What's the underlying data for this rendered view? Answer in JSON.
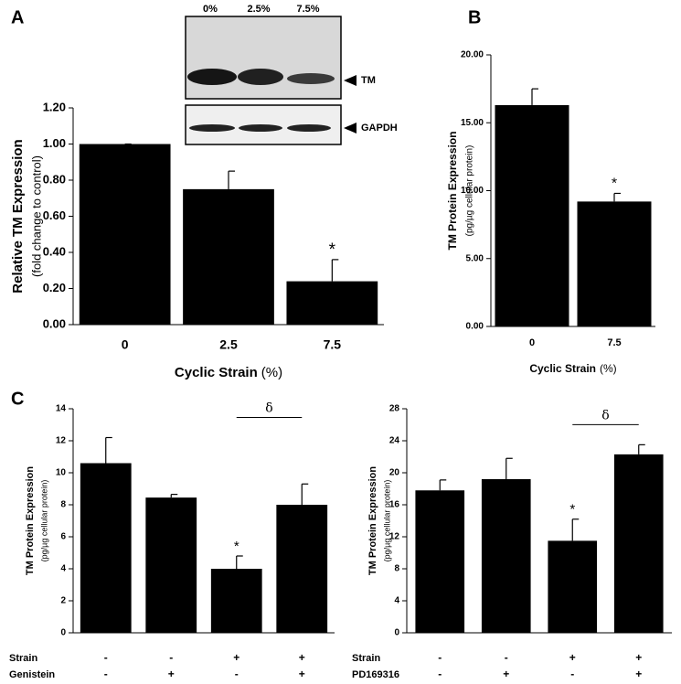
{
  "chart_data": [
    {
      "type": "bar",
      "panel": "A",
      "ylabel": "Relative TM Expression",
      "ylabel_sub": "(fold change to control)",
      "xlabel": "Cyclic Strain",
      "xlabel_unit": "(%)",
      "categories": [
        "0",
        "2.5",
        "7.5"
      ],
      "values": [
        1.0,
        0.75,
        0.24
      ],
      "errors": [
        0,
        0.1,
        0.12
      ],
      "value_annotations": [
        null,
        null,
        "*"
      ],
      "color": "#000000",
      "ylim": [
        0,
        1.2
      ],
      "yticks": [
        {
          "value": 0,
          "label": "0.00"
        },
        {
          "value": 0.2,
          "label": "0.20"
        },
        {
          "value": 0.4,
          "label": "0.40"
        },
        {
          "value": 0.6,
          "label": "0.60"
        },
        {
          "value": 0.8,
          "label": "0.80"
        },
        {
          "value": 1.0,
          "label": "1.00"
        },
        {
          "value": 1.2,
          "label": "1.20"
        }
      ],
      "inset": {
        "lanes": [
          "0%",
          "2.5%",
          "7.5%"
        ],
        "bands": [
          "TM",
          "GAPDH"
        ]
      }
    },
    {
      "type": "bar",
      "panel": "B",
      "ylabel": "TM Protein Expression",
      "ylabel_sub": "(pg/µg cellular protein)",
      "xlabel": "Cyclic Strain",
      "xlabel_unit": "(%)",
      "categories": [
        "0",
        "7.5"
      ],
      "values": [
        16.3,
        9.2
      ],
      "errors": [
        1.2,
        0.6
      ],
      "value_annotations": [
        null,
        "*"
      ],
      "color": "#000000",
      "ylim": [
        0,
        20
      ],
      "yticks": [
        {
          "value": 0,
          "label": "0.00"
        },
        {
          "value": 5,
          "label": "5.00"
        },
        {
          "value": 10,
          "label": "10.00"
        },
        {
          "value": 15,
          "label": "15.00"
        },
        {
          "value": 20,
          "label": "20.00"
        }
      ]
    },
    {
      "type": "bar",
      "panel": "C",
      "ylabel": "TM Protein Expression",
      "ylabel_sub": "(pg/µg cellular protein)",
      "treatments": [
        {
          "name": "Strain",
          "levels": [
            "-",
            "-",
            "+",
            "+"
          ]
        },
        {
          "name": "Genistein",
          "levels": [
            "-",
            "+",
            "-",
            "+"
          ]
        }
      ],
      "values": [
        10.6,
        8.45,
        4.0,
        8.0
      ],
      "errors": [
        1.6,
        0.2,
        0.8,
        1.3
      ],
      "value_annotations": [
        null,
        null,
        "*",
        null
      ],
      "bracket": {
        "text": "δ",
        "from": 2,
        "to": 3
      },
      "color": "#000000",
      "ylim": [
        0,
        14
      ],
      "yticks": [
        0,
        2,
        4,
        6,
        8,
        10,
        12,
        14
      ]
    },
    {
      "type": "bar",
      "ylabel": "TM Protein Expression",
      "ylabel_sub": "(pg/µg cellular protein)",
      "treatments": [
        {
          "name": "Strain",
          "levels": [
            "-",
            "-",
            "+",
            "+"
          ]
        },
        {
          "name": "PD169316",
          "levels": [
            "-",
            "+",
            "-",
            "+"
          ]
        }
      ],
      "values": [
        17.8,
        19.2,
        11.5,
        22.3
      ],
      "errors": [
        1.3,
        2.6,
        2.7,
        1.2
      ],
      "value_annotations": [
        null,
        null,
        "*",
        null
      ],
      "bracket": {
        "text": "δ",
        "from": 2,
        "to": 3
      },
      "color": "#000000",
      "ylim": [
        0,
        28
      ],
      "yticks": [
        0,
        4,
        8,
        12,
        16,
        20,
        24,
        28
      ]
    }
  ]
}
